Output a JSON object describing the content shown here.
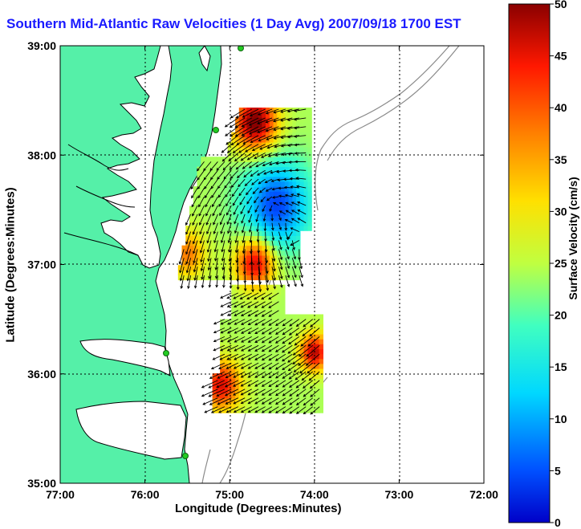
{
  "chart_data": {
    "type": "heatmap",
    "title": "Southern Mid-Atlantic Raw Velocities (1 Day Avg) 2007/09/18 1700 EST",
    "xlabel": "Longitude (Degrees:Minutes)",
    "ylabel": "Latitude (Degrees:Minutes)",
    "colorbar_label": "Surface Velocity (cm/s)",
    "x_ticks": [
      "77:00",
      "76:00",
      "75:00",
      "74:00",
      "73:00",
      "72:00"
    ],
    "y_ticks": [
      "39:00",
      "38:00",
      "37:00",
      "36:00",
      "35:00"
    ],
    "colorbar_ticks": [
      "0",
      "5",
      "10",
      "15",
      "20",
      "25",
      "30",
      "35",
      "40",
      "45",
      "50"
    ],
    "xlim": [
      -77,
      -72
    ],
    "ylim": [
      35,
      39
    ],
    "clim": [
      0,
      50
    ],
    "grid": true,
    "colormap": "jet",
    "land_color": "#55f0a8",
    "title_color": "#1a1aff",
    "velocity_field": {
      "north_region": {
        "lat_range": [
          36.85,
          38.5
        ],
        "lon_range": [
          -75.6,
          -74.05
        ]
      },
      "south_region": {
        "lat_range": [
          35.65,
          36.8
        ],
        "lon_range": [
          -75.25,
          -73.9
        ]
      },
      "notes": "Surface current speeds mostly 15-35 cm/s; a low-speed core (5-12 cm/s) near 37.5N 74.5W; high speeds (40-50 cm/s) near 38.3N 74.7W, 37.0N 74.7W, 35.9N 75.1W and 36.2N 74.0W"
    }
  }
}
